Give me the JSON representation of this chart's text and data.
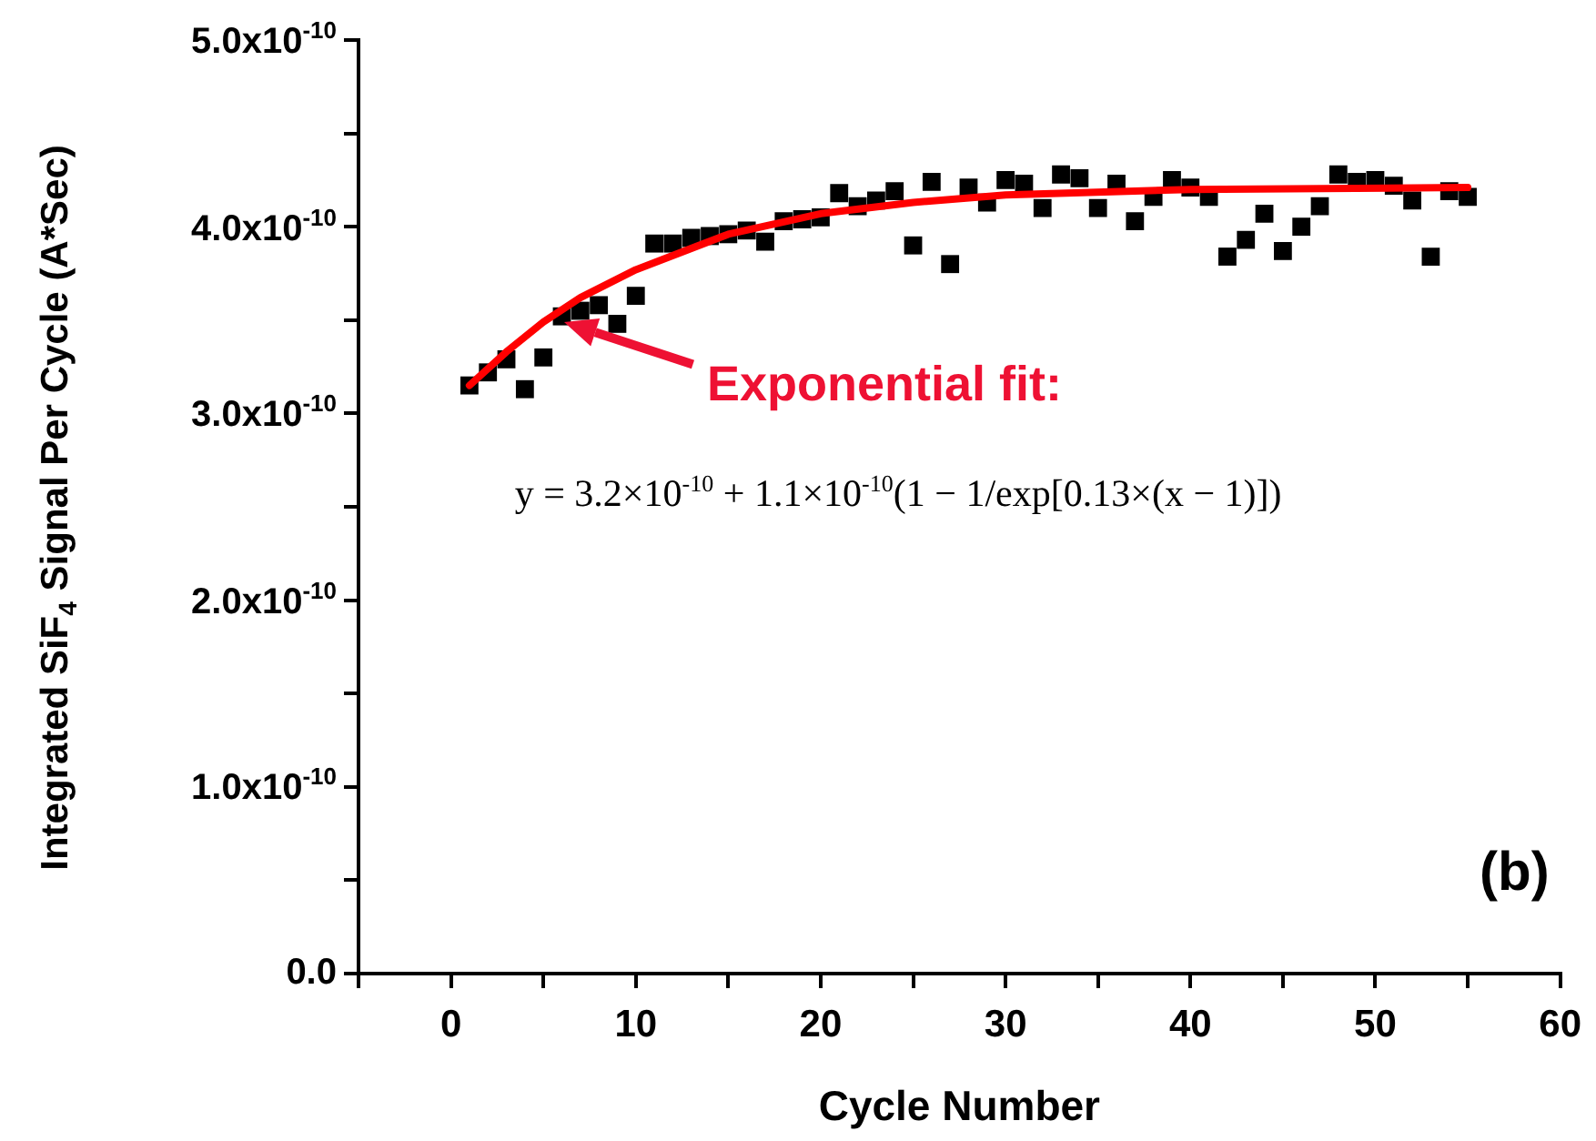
{
  "chart_data": {
    "type": "scatter",
    "xlabel": "Cycle Number",
    "ylabel": "Integrated SiF$_{4}$ Signal Per Cycle (A*Sec)",
    "xlim": [
      -5,
      60
    ],
    "xticks": [
      {
        "value": -5,
        "label": null
      },
      0,
      {
        "value": 5,
        "label": null
      },
      10,
      {
        "value": 15,
        "label": null
      },
      20,
      {
        "value": 25,
        "label": null
      },
      30,
      {
        "value": 35,
        "label": null
      },
      40,
      {
        "value": 45,
        "label": null
      },
      50,
      {
        "value": 55,
        "label": null
      },
      60
    ],
    "ylim": [
      0,
      5e-10
    ],
    "yticks": [
      {
        "value": 0,
        "label": "0.0"
      },
      {
        "value": 5e-11,
        "label": null
      },
      {
        "value": 1e-10,
        "label": "1.0x10$^{-10}$"
      },
      {
        "value": 1.5e-10,
        "label": null
      },
      {
        "value": 2e-10,
        "label": "2.0x10$^{-10}$"
      },
      {
        "value": 2.5e-10,
        "label": null
      },
      {
        "value": 3e-10,
        "label": "3.0x10$^{-10}$"
      },
      {
        "value": 3.5e-10,
        "label": null
      },
      {
        "value": 4e-10,
        "label": "4.0x10$^{-10}$"
      },
      {
        "value": 4.5e-10,
        "label": null
      },
      {
        "value": 5e-10,
        "label": "5.0x10$^{-10}$"
      }
    ],
    "grid": false,
    "legend": false,
    "marker": "square",
    "series": [
      {
        "color": "#000000",
        "x": [
          1,
          2,
          3,
          4,
          5,
          6,
          7,
          8,
          9,
          10,
          11,
          12,
          13,
          14,
          15,
          16,
          17,
          18,
          19,
          20,
          21,
          22,
          23,
          24,
          25,
          26,
          27,
          28,
          29,
          30,
          31,
          32,
          33,
          34,
          35,
          36,
          37,
          38,
          39,
          40,
          41,
          42,
          43,
          44,
          45,
          46,
          47,
          48,
          49,
          50,
          51,
          52,
          53,
          54,
          55
        ],
        "values": [
          3.15e-10,
          3.22e-10,
          3.29e-10,
          3.13e-10,
          3.3e-10,
          3.52e-10,
          3.55e-10,
          3.58e-10,
          3.48e-10,
          3.63e-10,
          3.91e-10,
          3.91e-10,
          3.94e-10,
          3.95e-10,
          3.96e-10,
          3.98e-10,
          3.92e-10,
          4.03e-10,
          4.04e-10,
          4.05e-10,
          4.18e-10,
          4.11e-10,
          4.14e-10,
          4.19e-10,
          3.9e-10,
          4.24e-10,
          3.8e-10,
          4.21e-10,
          4.13e-10,
          4.25e-10,
          4.23e-10,
          4.1e-10,
          4.28e-10,
          4.26e-10,
          4.1e-10,
          4.23e-10,
          4.03e-10,
          4.16e-10,
          4.25e-10,
          4.21e-10,
          4.16e-10,
          3.84e-10,
          3.93e-10,
          4.07e-10,
          3.87e-10,
          4e-10,
          4.11e-10,
          4.28e-10,
          4.24e-10,
          4.25e-10,
          4.22e-10,
          4.14e-10,
          3.84e-10,
          4.19e-10,
          4.16e-10
        ]
      },
      {
        "type": "line",
        "color": "#ff0000",
        "marker": "none",
        "line_style": "solid",
        "x": [
          1,
          3,
          5,
          7,
          10,
          15,
          20,
          25,
          30,
          40,
          55
        ],
        "values": [
          3.15e-10,
          3.33e-10,
          3.49e-10,
          3.62e-10,
          3.77e-10,
          3.96e-10,
          4.07e-10,
          4.13e-10,
          4.17e-10,
          4.2e-10,
          4.21e-10
        ]
      }
    ],
    "annotations": [
      "Exponential fit:",
      "y = 3.2×10$^{-10}$ + 1.1×10$^{-10}$(1 − 1/exp[0.13×(x − 1)])",
      "(b)"
    ]
  }
}
